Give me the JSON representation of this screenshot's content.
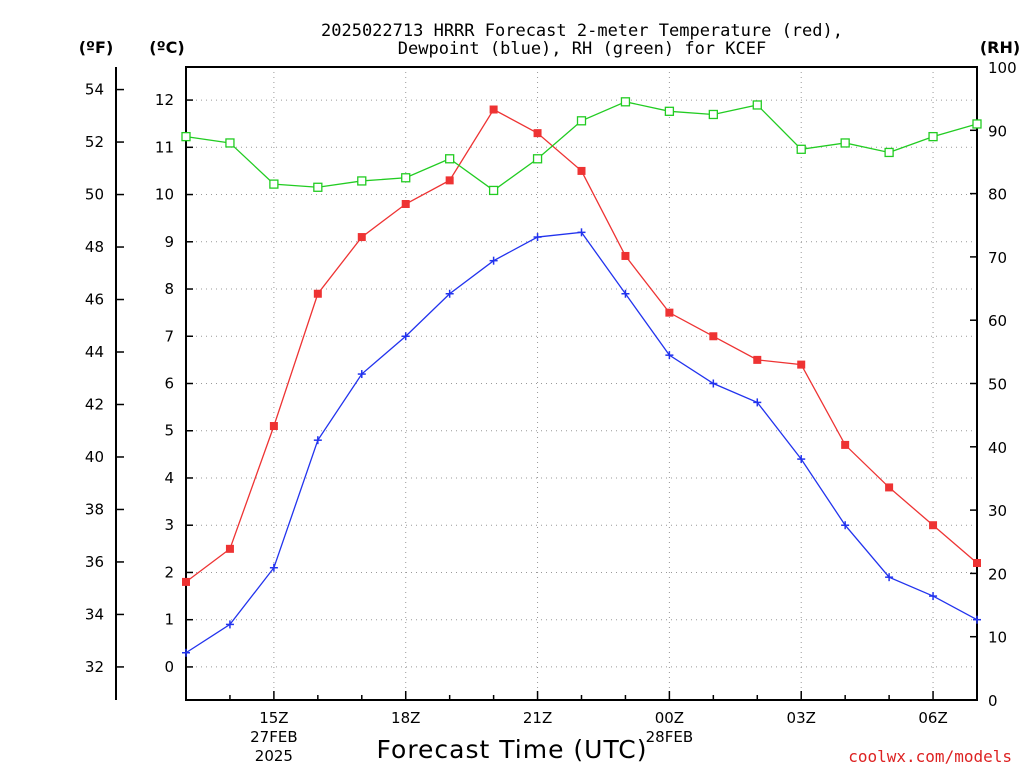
{
  "page": {
    "title_line1": "2025022713 HRRR Forecast 2-meter Temperature (red),",
    "title_line2": "Dewpoint (blue), RH (green) for KCEF",
    "credit": "coolwx.com/models"
  },
  "chart_data": {
    "type": "line",
    "title": "2025022713 HRRR Forecast 2-meter Temperature (red), Dewpoint (blue), RH (green) for KCEF",
    "xlabel": "Forecast Time (UTC)",
    "x_hours_utc": [
      "13Z",
      "14Z",
      "15Z",
      "16Z",
      "17Z",
      "18Z",
      "19Z",
      "20Z",
      "21Z",
      "22Z",
      "23Z",
      "00Z",
      "01Z",
      "02Z",
      "03Z",
      "04Z",
      "05Z",
      "06Z",
      "07Z"
    ],
    "x_tick_labels": [
      {
        "hour": "15Z",
        "date": "27FEB",
        "year": "2025"
      },
      {
        "hour": "18Z"
      },
      {
        "hour": "21Z"
      },
      {
        "hour": "00Z",
        "date": "28FEB"
      },
      {
        "hour": "03Z"
      },
      {
        "hour": "06Z"
      }
    ],
    "left_axis_c": {
      "unit": "(ºC)",
      "range": [
        -0.7,
        12.7
      ],
      "ticks": [
        0,
        1,
        2,
        3,
        4,
        5,
        6,
        7,
        8,
        9,
        10,
        11,
        12
      ]
    },
    "left_axis_f": {
      "unit": "(ºF)",
      "range": [
        30.74,
        54.86
      ],
      "ticks": [
        32,
        34,
        36,
        38,
        40,
        42,
        44,
        46,
        48,
        50,
        52,
        54
      ]
    },
    "right_axis_rh": {
      "unit": "(RH)",
      "range": [
        0,
        100
      ],
      "ticks": [
        0,
        10,
        20,
        30,
        40,
        50,
        60,
        70,
        80,
        90,
        100
      ]
    },
    "grid": true,
    "series": [
      {
        "name": "Temperature",
        "color": "#ee3333",
        "marker": "filled-square",
        "axis": "c",
        "values": [
          1.8,
          2.5,
          5.1,
          7.9,
          9.1,
          9.8,
          10.3,
          11.8,
          11.3,
          10.5,
          8.7,
          7.5,
          7.0,
          6.5,
          6.4,
          4.7,
          3.8,
          3.0,
          2.2
        ]
      },
      {
        "name": "Dewpoint",
        "color": "#2233ee",
        "marker": "plus",
        "axis": "c",
        "values": [
          0.3,
          0.9,
          2.1,
          4.8,
          6.2,
          7.0,
          7.9,
          8.6,
          9.1,
          9.2,
          7.9,
          6.6,
          6.0,
          5.6,
          4.4,
          3.0,
          1.9,
          1.5,
          1.0
        ]
      },
      {
        "name": "RH",
        "color": "#22cc22",
        "marker": "open-square",
        "axis": "rh",
        "values": [
          89,
          88,
          81.5,
          81,
          82,
          82.5,
          85.5,
          80.5,
          85.5,
          91.5,
          94.5,
          93,
          92.5,
          94,
          87,
          88,
          86.5,
          89,
          91
        ]
      }
    ]
  }
}
